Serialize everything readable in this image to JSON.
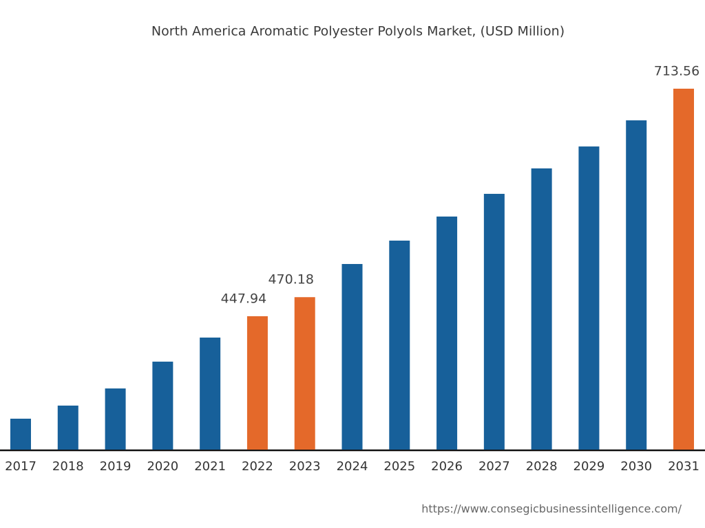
{
  "chart_data": {
    "type": "bar",
    "title": "North America Aromatic Polyester Polyols Market, (USD Million)",
    "categories": [
      "2017",
      "2018",
      "2019",
      "2020",
      "2021",
      "2022",
      "2023",
      "2024",
      "2025",
      "2026",
      "2027",
      "2028",
      "2029",
      "2030",
      "2031"
    ],
    "values": [
      328.3,
      343.6,
      363.6,
      394.9,
      423.0,
      447.94,
      470.18,
      508.9,
      536.2,
      564.3,
      590.8,
      620.5,
      646.1,
      676.6,
      713.56
    ],
    "value_labels": [
      null,
      null,
      null,
      null,
      null,
      "447.94",
      "470.18",
      null,
      null,
      null,
      null,
      null,
      null,
      null,
      "713.56"
    ],
    "colors": [
      "#17609a",
      "#17609a",
      "#17609a",
      "#17609a",
      "#17609a",
      "#e4692a",
      "#e4692a",
      "#17609a",
      "#17609a",
      "#17609a",
      "#17609a",
      "#17609a",
      "#17609a",
      "#17609a",
      "#e4692a"
    ],
    "source": "https://www.consegicbusinessintelligence.com/"
  }
}
